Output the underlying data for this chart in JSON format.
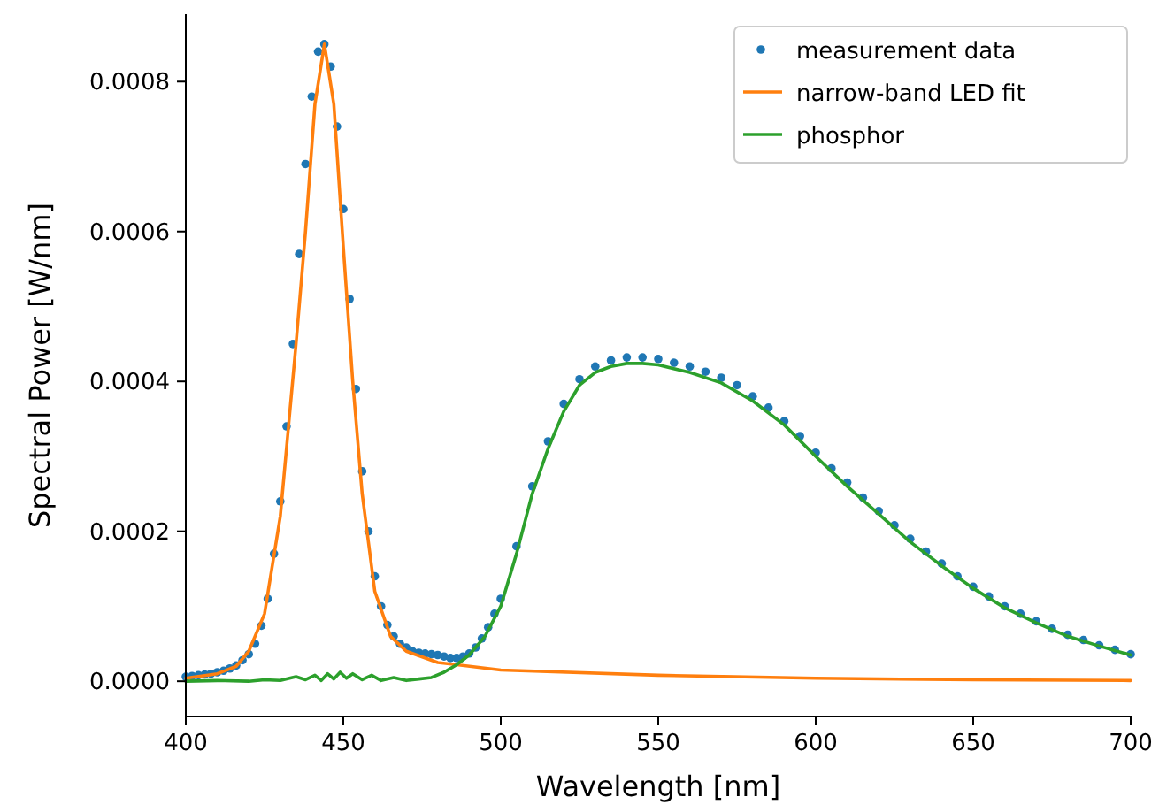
{
  "chart_data": {
    "type": "line",
    "xlabel": "Wavelength [nm]",
    "ylabel": "Spectral Power [W/nm]",
    "xlim": [
      400,
      700
    ],
    "ylim": [
      -4.7e-05,
      0.00089
    ],
    "xticks": [
      400,
      450,
      500,
      550,
      600,
      650,
      700
    ],
    "yticks": [
      {
        "value": 0,
        "label": "0.0000"
      },
      {
        "value": 0.0002,
        "label": "0.0002"
      },
      {
        "value": 0.0004,
        "label": "0.0004"
      },
      {
        "value": 0.0006,
        "label": "0.0006"
      },
      {
        "value": 0.0008,
        "label": "0.0008"
      }
    ],
    "grid": false,
    "legend": "top right",
    "series": [
      {
        "name": "measurement data",
        "type": "scatter",
        "marker": "circle",
        "color": "#1f77b4",
        "x": [
          400,
          402,
          404,
          406,
          408,
          410,
          412,
          414,
          416,
          418,
          420,
          422,
          424,
          426,
          428,
          430,
          432,
          434,
          436,
          438,
          440,
          442,
          444,
          446,
          448,
          450,
          452,
          454,
          456,
          458,
          460,
          462,
          464,
          466,
          468,
          470,
          472,
          474,
          476,
          478,
          480,
          482,
          484,
          486,
          488,
          490,
          492,
          494,
          496,
          498,
          500,
          505,
          510,
          515,
          520,
          525,
          530,
          535,
          540,
          545,
          550,
          555,
          560,
          565,
          570,
          575,
          580,
          585,
          590,
          595,
          600,
          605,
          610,
          615,
          620,
          625,
          630,
          635,
          640,
          645,
          650,
          655,
          660,
          665,
          670,
          675,
          680,
          685,
          690,
          695,
          700
        ],
        "values": [
          6e-06,
          7e-06,
          8e-06,
          9e-06,
          1e-05,
          1.2e-05,
          1.4e-05,
          1.7e-05,
          2.1e-05,
          2.8e-05,
          3.6e-05,
          5e-05,
          7.4e-05,
          0.00011,
          0.00017,
          0.00024,
          0.00034,
          0.00045,
          0.00057,
          0.00069,
          0.00078,
          0.00084,
          0.00085,
          0.00082,
          0.00074,
          0.00063,
          0.00051,
          0.00039,
          0.00028,
          0.0002,
          0.00014,
          0.0001,
          7.5e-05,
          6e-05,
          5e-05,
          4.5e-05,
          4e-05,
          3.8e-05,
          3.7e-05,
          3.6e-05,
          3.5e-05,
          3.3e-05,
          3.1e-05,
          3.1e-05,
          3.3e-05,
          3.7e-05,
          4.5e-05,
          5.7e-05,
          7.2e-05,
          9e-05,
          0.00011,
          0.00018,
          0.00026,
          0.00032,
          0.00037,
          0.000403,
          0.00042,
          0.000428,
          0.000432,
          0.000432,
          0.00043,
          0.000425,
          0.00042,
          0.000413,
          0.000405,
          0.000395,
          0.00038,
          0.000365,
          0.000347,
          0.000327,
          0.000305,
          0.000284,
          0.000265,
          0.000245,
          0.000227,
          0.000208,
          0.00019,
          0.000173,
          0.000157,
          0.00014,
          0.000126,
          0.000113,
          0.0001,
          9e-05,
          8e-05,
          7e-05,
          6.2e-05,
          5.5e-05,
          4.8e-05,
          4.2e-05,
          3.6e-05
        ]
      },
      {
        "name": "narrow-band LED fit",
        "type": "line",
        "color": "#ff7f0e",
        "x": [
          400,
          410,
          416,
          420,
          425,
          430,
          435,
          438,
          441,
          444,
          447,
          450,
          453,
          456,
          460,
          465,
          470,
          480,
          500,
          550,
          600,
          650,
          700
        ],
        "values": [
          4e-06,
          1e-05,
          2e-05,
          4e-05,
          9e-05,
          0.00022,
          0.00045,
          0.0006,
          0.00077,
          0.00085,
          0.00077,
          0.00058,
          0.0004,
          0.00025,
          0.00012,
          6e-05,
          4e-05,
          2.5e-05,
          1.5e-05,
          8e-06,
          4e-06,
          2e-06,
          1e-06
        ]
      },
      {
        "name": "phosphor",
        "type": "line",
        "color": "#2ca02c",
        "x": [
          400,
          410,
          420,
          425,
          430,
          435,
          438,
          441,
          443,
          445,
          447,
          449,
          451,
          453,
          456,
          459,
          462,
          466,
          470,
          474,
          478,
          482,
          486,
          490,
          495,
          500,
          505,
          510,
          515,
          520,
          525,
          530,
          535,
          540,
          545,
          550,
          560,
          570,
          580,
          590,
          600,
          610,
          620,
          630,
          640,
          650,
          660,
          670,
          680,
          690,
          700
        ],
        "values": [
          0,
          1e-06,
          0,
          2e-06,
          1e-06,
          6e-06,
          2e-06,
          8e-06,
          1e-06,
          1e-05,
          3e-06,
          1.2e-05,
          4e-06,
          1e-05,
          2e-06,
          8e-06,
          1e-06,
          5e-06,
          1e-06,
          3e-06,
          5e-06,
          1.2e-05,
          2.2e-05,
          3.5e-05,
          6e-05,
          0.0001,
          0.00017,
          0.00025,
          0.00031,
          0.00036,
          0.000395,
          0.000412,
          0.00042,
          0.000424,
          0.000424,
          0.000422,
          0.000412,
          0.000398,
          0.000374,
          0.000342,
          0.0003,
          0.00026,
          0.000223,
          0.000186,
          0.000154,
          0.000124,
          9.8e-05,
          7.8e-05,
          6e-05,
          4.7e-05,
          3.5e-05
        ]
      }
    ]
  }
}
